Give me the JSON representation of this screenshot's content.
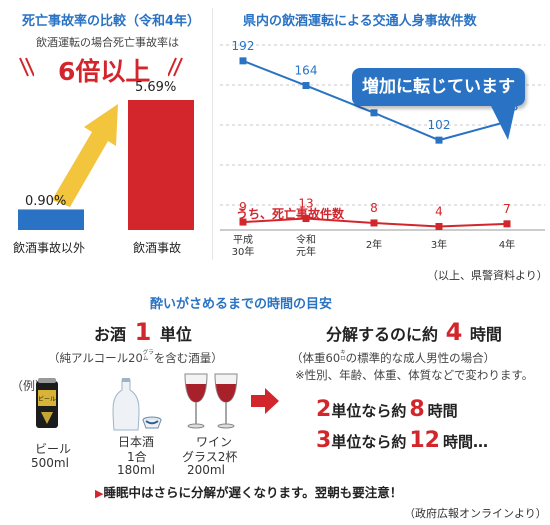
{
  "left_chart": {
    "title": "死亡事故率の比較（令和4年）",
    "subtitle": "飲酒運転の場合死亡事故率は",
    "highlight": "6倍以上",
    "bars": [
      {
        "label": "飲酒事故以外",
        "value_label": "0.90%",
        "value": 0.9,
        "color": "#2a73c4"
      },
      {
        "label": "飲酒事故",
        "value_label": "5.69%",
        "value": 5.69,
        "color": "#d3262c"
      }
    ]
  },
  "chart_data": [
    {
      "type": "bar",
      "title": "死亡事故率の比較（令和4年）",
      "categories": [
        "飲酒事故以外",
        "飲酒事故"
      ],
      "values": [
        0.9,
        5.69
      ],
      "value_labels": [
        "0.90%",
        "5.69%"
      ]
    },
    {
      "type": "line",
      "title": "県内の飲酒運転による交通人身事故件数",
      "categories": [
        "平成30年",
        "令和元年",
        "2年",
        "3年",
        "4年"
      ],
      "series": [
        {
          "values": [
            192,
            164,
            133,
            102,
            123
          ],
          "color": "#2a73c4"
        },
        {
          "name": "うち、死亡事故件数",
          "values": [
            9,
            13,
            8,
            4,
            7
          ],
          "color": "#d3262c"
        }
      ],
      "ylim": [
        0,
        210
      ],
      "grid": "horizontal dashed"
    }
  ],
  "line_chart": {
    "title": "県内の飲酒運転による交通人身事故件数",
    "callout": "増加に転じています",
    "series_label": "うち、死亡事故件数",
    "x_labels": [
      [
        "平成",
        "30年"
      ],
      [
        "令和",
        "元年"
      ],
      [
        "2年"
      ],
      [
        "3年"
      ],
      [
        "4年"
      ]
    ],
    "source": "（以上、県警資料より）"
  },
  "bottom": {
    "title": "酔いがさめるまでの時間の目安",
    "unit_prefix": "お酒",
    "unit_num": "1",
    "unit_suffix": "単位",
    "unit_note_a": "（純アルコール20",
    "unit_note_b": "を含む酒量）",
    "gram_top": "グラ",
    "gram_bottom": "ム",
    "example": "（例）",
    "drinks": [
      {
        "name": "ビール",
        "amount": "500ml",
        "can_label": "ビール"
      },
      {
        "name": "日本酒",
        "amount": "180ml",
        "sub": "1合"
      },
      {
        "name": "ワイン",
        "amount": "200ml",
        "sub": "グラス2杯"
      }
    ],
    "decomp_a": "分解するのに約",
    "decomp_num": "4",
    "decomp_b": "時間",
    "decomp_note1_a": "（体重60",
    "decomp_note1_b": "の標準的な成人男性の場合）",
    "kilo_top": "キ",
    "kilo_bottom": "ロ",
    "decomp_note2": "※性別、年齢、体重、体質などで変わります。",
    "row2_num": "2",
    "row2_text": "単位なら約",
    "row2_hours": "8",
    "row2_unit": "時間",
    "row3_num": "3",
    "row3_text": "単位なら約",
    "row3_hours": "12",
    "row3_unit": "時間…",
    "warning": "睡眠中はさらに分解が遅くなります。翌朝も要注意！",
    "source": "（政府広報オンラインより）"
  },
  "colors": {
    "blue": "#2a73c4",
    "red": "#d3262c",
    "grid": "#c9c9c9"
  }
}
